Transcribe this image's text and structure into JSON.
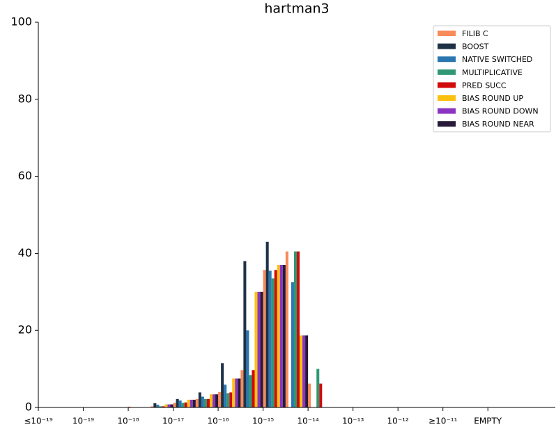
{
  "chart_data": {
    "type": "bar",
    "title": "hartman3",
    "categories": [
      "≤10⁻¹⁹",
      null,
      "10⁻¹⁹",
      null,
      "10⁻¹⁸",
      null,
      "10⁻¹⁷",
      null,
      "10⁻¹⁶",
      null,
      "10⁻¹⁵",
      null,
      "10⁻¹⁴",
      null,
      "10⁻¹³",
      null,
      "10⁻¹²",
      null,
      "≥10⁻¹¹",
      null,
      "EMPTY",
      null,
      null
    ],
    "series": [
      {
        "name": "FILIB C",
        "color": "#f98a5a",
        "values": [
          0,
          0,
          0,
          0,
          0.2,
          0.3,
          1.2,
          2.2,
          4,
          9.7,
          35.7,
          40.5,
          6.2,
          0,
          0,
          0,
          0,
          0,
          0,
          0,
          0,
          0,
          0
        ]
      },
      {
        "name": "BOOST",
        "color": "#1e3247",
        "values": [
          0,
          0,
          0,
          0,
          0,
          1.1,
          2.2,
          3.9,
          11.5,
          38,
          43,
          0,
          0,
          0,
          0,
          0,
          0,
          0,
          0,
          0,
          0,
          0,
          0
        ]
      },
      {
        "name": "NATIVE SWITCHED",
        "color": "#2a77b0",
        "values": [
          0,
          0,
          0,
          0,
          0,
          0.7,
          1.8,
          2.8,
          5.9,
          20,
          35.5,
          32.5,
          0,
          0,
          0,
          0,
          0,
          0,
          0,
          0,
          0,
          0,
          0
        ]
      },
      {
        "name": "MULTIPLICATIVE",
        "color": "#2f9872",
        "values": [
          0,
          0,
          0,
          0,
          0,
          0.3,
          1.2,
          2.2,
          3.7,
          8.4,
          33.5,
          40.5,
          10,
          0,
          0,
          0,
          0,
          0,
          0,
          0,
          0,
          0,
          0
        ]
      },
      {
        "name": "PRED SUCC",
        "color": "#d10a0a",
        "values": [
          0,
          0,
          0,
          0,
          0,
          0.3,
          1.3,
          2.2,
          3.9,
          9.7,
          35.7,
          40.5,
          6.2,
          0,
          0,
          0,
          0,
          0,
          0,
          0,
          0,
          0,
          0
        ]
      },
      {
        "name": "BIAS ROUND UP",
        "color": "#fdc00f",
        "values": [
          0,
          0,
          0,
          0,
          0,
          0.8,
          2,
          3.4,
          7.5,
          30,
          37,
          18.7,
          0,
          0,
          0,
          0,
          0,
          0,
          0,
          0,
          0,
          0,
          0
        ]
      },
      {
        "name": "BIAS ROUND DOWN",
        "color": "#8b34c4",
        "values": [
          0,
          0,
          0,
          0,
          0,
          0.8,
          2,
          3.4,
          7.5,
          30,
          37,
          18.7,
          0,
          0,
          0,
          0,
          0,
          0,
          0,
          0,
          0,
          0,
          0
        ]
      },
      {
        "name": "BIAS ROUND NEAR",
        "color": "#261a38",
        "values": [
          0,
          0,
          0,
          0,
          0,
          0.8,
          2,
          3.4,
          7.5,
          30,
          37,
          18.7,
          0,
          0,
          0,
          0,
          0,
          0,
          0,
          0,
          0,
          0,
          0
        ]
      }
    ],
    "ylim": [
      0,
      100
    ],
    "yticks": [
      0,
      20,
      40,
      60,
      80,
      100
    ],
    "grid": false,
    "legend": "upper right"
  }
}
